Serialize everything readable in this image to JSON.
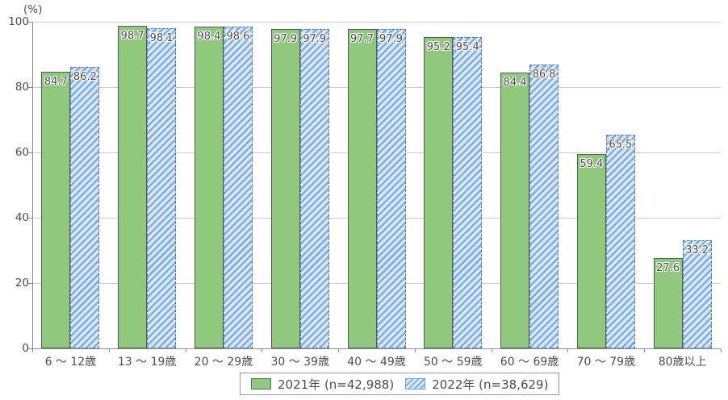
{
  "chart_data": {
    "type": "bar",
    "unit_label": "(%)",
    "categories": [
      "6 〜 12歳",
      "13 〜 19歳",
      "20 〜 29歳",
      "30 〜 39歳",
      "40 〜 49歳",
      "50 〜 59歳",
      "60 〜 69歳",
      "70 〜 79歳",
      "80歳以上"
    ],
    "series": [
      {
        "name": "2021年 (n=42,988)",
        "pattern": "solid",
        "color": "#90c87e",
        "values": [
          84.7,
          98.7,
          98.4,
          97.9,
          97.7,
          95.2,
          84.4,
          59.4,
          27.6
        ]
      },
      {
        "name": "2022年 (n=38,629)",
        "pattern": "diagonal-hatch",
        "color": "#7faee0",
        "values": [
          86.2,
          98.1,
          98.6,
          97.9,
          97.9,
          95.4,
          86.8,
          65.5,
          33.2
        ]
      }
    ],
    "ylim": [
      0,
      100
    ],
    "yticks": [
      0,
      20,
      40,
      60,
      80,
      100
    ],
    "grid": true,
    "value_labels": true,
    "legend_position": "bottom"
  },
  "colors": {
    "series_2021_fill": "#90c87e",
    "series_2021_border": "#595959",
    "series_2022_stripe": "#7faee0",
    "series_2022_background": "#d9e7f7",
    "series_2022_border": "#5f7792",
    "gridline": "#cdcdcd",
    "axis": "#8c8c8c",
    "text": "#4d4d4d"
  }
}
